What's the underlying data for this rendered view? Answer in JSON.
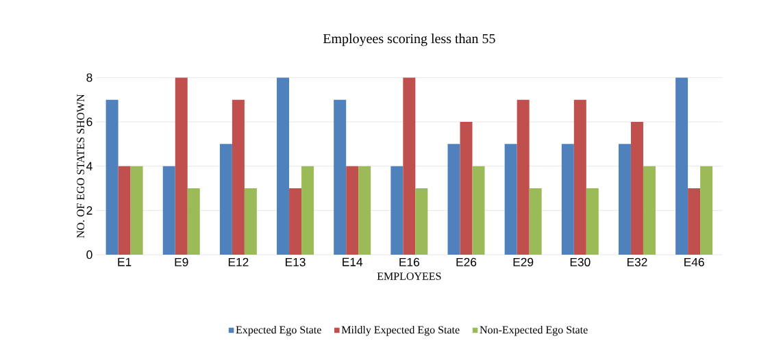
{
  "chart_data": {
    "type": "bar",
    "title": "Employees scoring less than 55",
    "xlabel": "EMPLOYEES",
    "ylabel": "NO. OF EGO STATES SHOWN",
    "categories": [
      "E1",
      "E9",
      "E12",
      "E13",
      "E14",
      "E16",
      "E26",
      "E29",
      "E30",
      "E32",
      "E46"
    ],
    "series": [
      {
        "name": "Expected Ego State",
        "color": "#4f81bd",
        "values": [
          7,
          4,
          5,
          8,
          7,
          4,
          5,
          5,
          5,
          5,
          8
        ]
      },
      {
        "name": "Mildly Expected Ego State",
        "color": "#c0504d",
        "values": [
          4,
          8,
          7,
          3,
          4,
          8,
          6,
          7,
          7,
          6,
          3
        ]
      },
      {
        "name": "Non-Expected Ego State",
        "color": "#9bbb59",
        "values": [
          4,
          3,
          3,
          4,
          4,
          3,
          4,
          3,
          3,
          4,
          4
        ]
      }
    ],
    "ylim": [
      0,
      8
    ],
    "yticks": [
      0,
      2,
      4,
      6,
      8
    ],
    "grid": "y",
    "legend": "bottom"
  }
}
